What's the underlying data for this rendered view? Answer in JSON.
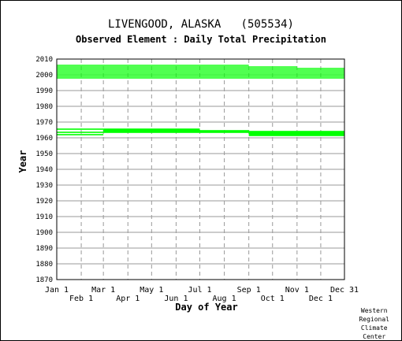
{
  "chart_data": {
    "type": "scatter",
    "title": "LIVENGOOD, ALASKA   (505534)",
    "subtitle": "Observed Element : Daily Total Precipitation",
    "xlabel": "Day of Year",
    "ylabel": "Year",
    "xlim": [
      1,
      365
    ],
    "ylim": [
      1870,
      2010
    ],
    "y_ticks": [
      1870,
      1880,
      1890,
      1900,
      1910,
      1920,
      1930,
      1940,
      1950,
      1960,
      1970,
      1980,
      1990,
      2000,
      2010
    ],
    "x_ticks_upper": [
      {
        "label": "Jan 1",
        "day": 1
      },
      {
        "label": "Mar 1",
        "day": 60
      },
      {
        "label": "May 1",
        "day": 121
      },
      {
        "label": "Jul 1",
        "day": 182
      },
      {
        "label": "Sep 1",
        "day": 244
      },
      {
        "label": "Nov 1",
        "day": 305
      },
      {
        "label": "Dec 31",
        "day": 365
      }
    ],
    "x_ticks_lower": [
      {
        "label": "Feb 1",
        "day": 32
      },
      {
        "label": "Apr 1",
        "day": 91
      },
      {
        "label": "Jun 1",
        "day": 152
      },
      {
        "label": "Aug 1",
        "day": 213
      },
      {
        "label": "Oct 1",
        "day": 274
      },
      {
        "label": "Dec 1",
        "day": 335
      }
    ],
    "grid": true,
    "series_color": "#00ff00",
    "data_segments": [
      {
        "year": 1965.5,
        "start_day": 1,
        "end_day": 60
      },
      {
        "year": 1965.5,
        "start_day": 60,
        "end_day": 182
      },
      {
        "year": 1965,
        "start_day": 60,
        "end_day": 182
      },
      {
        "year": 1964.5,
        "start_day": 60,
        "end_day": 244
      },
      {
        "year": 1964,
        "start_day": 60,
        "end_day": 365
      },
      {
        "year": 1963.5,
        "start_day": 1,
        "end_day": 365
      },
      {
        "year": 1963,
        "start_day": 244,
        "end_day": 365
      },
      {
        "year": 1962.5,
        "start_day": 244,
        "end_day": 365
      },
      {
        "year": 1962,
        "start_day": 1,
        "end_day": 60
      },
      {
        "year": 1962,
        "start_day": 244,
        "end_day": 365
      },
      {
        "year": 1961.5,
        "start_day": 244,
        "end_day": 365
      },
      {
        "year": 1998,
        "start_day": 1,
        "end_day": 365
      },
      {
        "year": 1999,
        "start_day": 1,
        "end_day": 365
      },
      {
        "year": 2000,
        "start_day": 1,
        "end_day": 365
      },
      {
        "year": 2001,
        "start_day": 1,
        "end_day": 365
      },
      {
        "year": 2002,
        "start_day": 1,
        "end_day": 365
      },
      {
        "year": 2003,
        "start_day": 1,
        "end_day": 365
      },
      {
        "year": 2004,
        "start_day": 1,
        "end_day": 365
      },
      {
        "year": 2005,
        "start_day": 1,
        "end_day": 305
      },
      {
        "year": 2006,
        "start_day": 1,
        "end_day": 244
      }
    ]
  },
  "credit": {
    "line1": "Western",
    "line2": "Regional",
    "line3": "Climate",
    "line4": "Center"
  }
}
